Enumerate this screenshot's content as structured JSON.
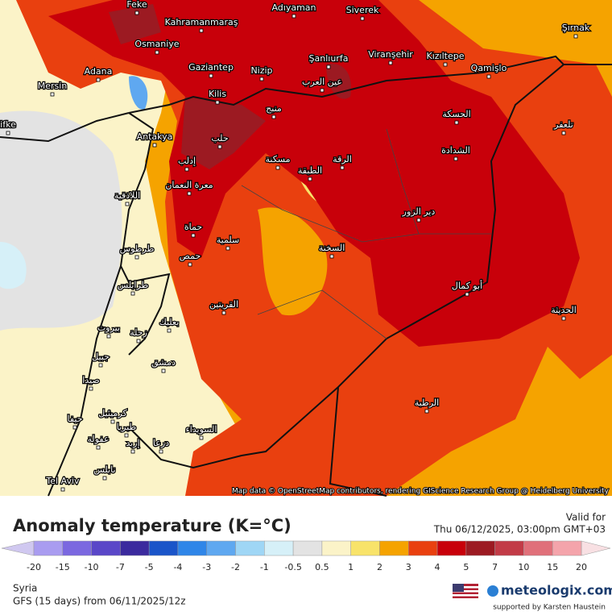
{
  "map": {
    "cities": [
      "Feke",
      "Kahramanmaraş",
      "Adıyaman",
      "Siverek",
      "Şırnak",
      "Osmaniye",
      "Gaziantep",
      "Nizip",
      "Şanlıurfa",
      "Viranşehir",
      "Kızıltepe",
      "Qamişlo",
      "Adana",
      "Mersin",
      "Kilis",
      "Antakya",
      "Tel Aviv",
      "ifke",
      "عين العرب",
      "منبج",
      "حلب",
      "الحسكة",
      "الشدادة",
      "الرقة",
      "الطبقة",
      "مسكنة",
      "إدلب",
      "معرة النعمان",
      "اللاذقية",
      "حماة",
      "سلمية",
      "طرطوس",
      "حمص",
      "السخنة",
      "دير الزور",
      "أبو كمال",
      "طرابلس",
      "القريتين",
      "بعلبك",
      "بيروت",
      "زحلة",
      "جبيل",
      "دمشق",
      "صيدا",
      "حيفا",
      "كرميئيل",
      "طبريا",
      "عفولة",
      "إربد",
      "درعا",
      "السويداء",
      "نابلس",
      "الرطبة",
      "الحديثة",
      "تلعفر"
    ],
    "attribution": "Map data © OpenStreetMap contributors, rendering GIScience Research Group @ Heidelberg University"
  },
  "legend": {
    "title": "Anomaly temperature (K=°C)",
    "valid_label": "Valid for",
    "valid_time": "Thu 06/12/2025, 03:00pm GMT+03",
    "ticks": [
      -20,
      -15,
      -10,
      -7,
      -5,
      -4,
      -3,
      -2,
      -1,
      -0.5,
      0.5,
      1,
      2,
      3,
      4,
      5,
      7,
      10,
      15,
      20
    ],
    "colors": [
      "#a99cf0",
      "#7b68e0",
      "#5a47c8",
      "#3b2a9e",
      "#1a55c9",
      "#2f86e8",
      "#5fa8f0",
      "#9fd6f5",
      "#d6f0f8",
      "#e3e3e3",
      "#fbf3c8",
      "#f8e36a",
      "#f5a300",
      "#e9400f",
      "#c8000a",
      "#9c1a22",
      "#c23b47",
      "#e0707a",
      "#f4a4ab"
    ]
  },
  "footer": {
    "region": "Syria",
    "model": "GFS (15 days) from 06/11/2025/12z",
    "brand": "meteologix.com",
    "support": "supported by Karsten Haustein"
  }
}
